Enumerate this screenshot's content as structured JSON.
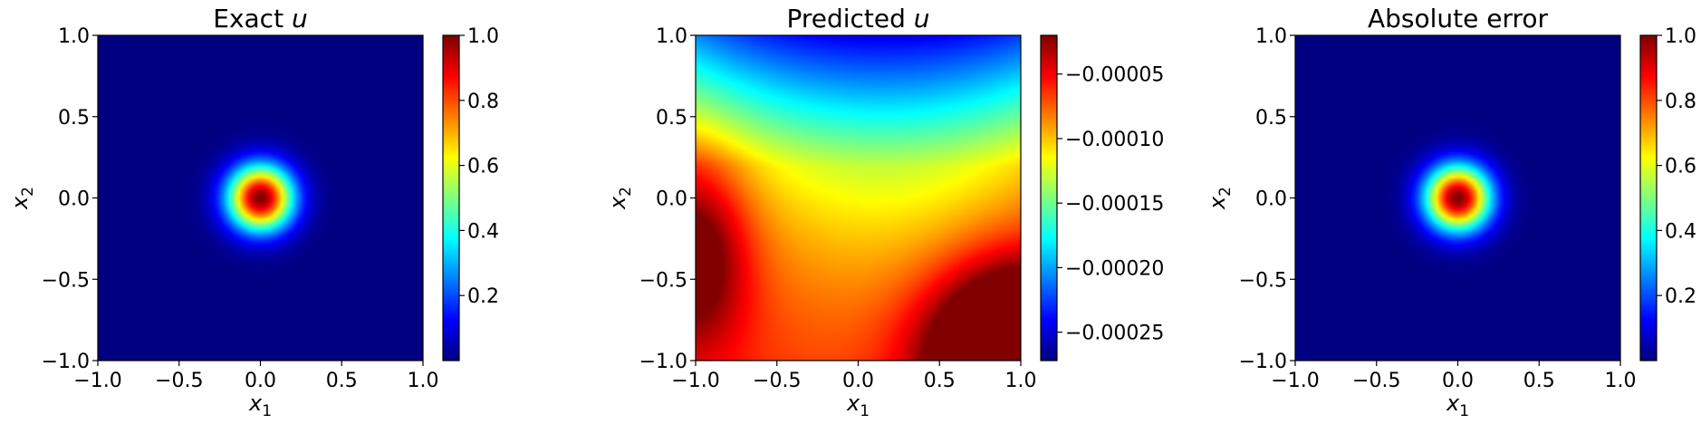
{
  "chart_data": [
    {
      "type": "heatmap",
      "title_prefix": "Exact ",
      "title_var": "u",
      "xlabel_base": "x",
      "xlabel_sub": "1",
      "ylabel_base": "x",
      "ylabel_sub": "2",
      "xlim": [
        -1.0,
        1.0
      ],
      "ylim": [
        -1.0,
        1.0
      ],
      "xticks": [
        -1.0,
        -0.5,
        0.0,
        0.5,
        1.0
      ],
      "xtick_labels": [
        "−1.0",
        "−0.5",
        "0.0",
        "0.5",
        "1.0"
      ],
      "yticks": [
        -1.0,
        -0.5,
        0.0,
        0.5,
        1.0
      ],
      "ytick_labels": [
        "−1.0",
        "−0.5",
        "0.0",
        "0.5",
        "1.0"
      ],
      "colormap": "jet",
      "colorbar": {
        "range": [
          0.0,
          1.0
        ],
        "ticks": [
          0.2,
          0.4,
          0.6,
          0.8,
          1.0
        ],
        "tick_labels": [
          "0.2",
          "0.4",
          "0.6",
          "0.8",
          "1.0"
        ]
      },
      "field": "gaussian bump centred at (0, 0), peak 1.0"
    },
    {
      "type": "heatmap",
      "title_prefix": "Predicted ",
      "title_var": "u",
      "xlabel_base": "x",
      "xlabel_sub": "1",
      "ylabel_base": "x",
      "ylabel_sub": "2",
      "xlim": [
        -1.0,
        1.0
      ],
      "ylim": [
        -1.0,
        1.0
      ],
      "xticks": [
        -1.0,
        -0.5,
        0.0,
        0.5,
        1.0
      ],
      "xtick_labels": [
        "−1.0",
        "−0.5",
        "0.0",
        "0.5",
        "1.0"
      ],
      "yticks": [
        -1.0,
        -0.5,
        0.0,
        0.5,
        1.0
      ],
      "ytick_labels": [
        "−1.0",
        "−0.5",
        "0.0",
        "0.5",
        "1.0"
      ],
      "colormap": "jet",
      "colorbar": {
        "range": [
          -0.000272,
          -2e-05
        ],
        "ticks": [
          -0.00025,
          -0.0002,
          -0.00015,
          -0.0001,
          -5e-05
        ],
        "tick_labels": [
          "−0.00025",
          "−0.00020",
          "−0.00015",
          "−0.00010",
          "−0.00005"
        ]
      },
      "field": "smooth field, minimum (~-0.00027) at top, U-shaped low band around (0.1, -0.4), maximum (~-0.00002) at bottom-right corner"
    },
    {
      "type": "heatmap",
      "title_prefix": "Absolute error",
      "title_var": "",
      "xlabel_base": "x",
      "xlabel_sub": "1",
      "ylabel_base": "x",
      "ylabel_sub": "2",
      "xlim": [
        -1.0,
        1.0
      ],
      "ylim": [
        -1.0,
        1.0
      ],
      "xticks": [
        -1.0,
        -0.5,
        0.0,
        0.5,
        1.0
      ],
      "xtick_labels": [
        "−1.0",
        "−0.5",
        "0.0",
        "0.5",
        "1.0"
      ],
      "yticks": [
        -1.0,
        -0.5,
        0.0,
        0.5,
        1.0
      ],
      "ytick_labels": [
        "−1.0",
        "−0.5",
        "0.0",
        "0.5",
        "1.0"
      ],
      "colormap": "jet",
      "colorbar": {
        "range": [
          0.0,
          1.0
        ],
        "ticks": [
          0.2,
          0.4,
          0.6,
          0.8,
          1.0
        ],
        "tick_labels": [
          "0.2",
          "0.4",
          "0.6",
          "0.8",
          "1.0"
        ]
      },
      "field": "gaussian bump centred at (0, 0), peak 1.0"
    }
  ]
}
